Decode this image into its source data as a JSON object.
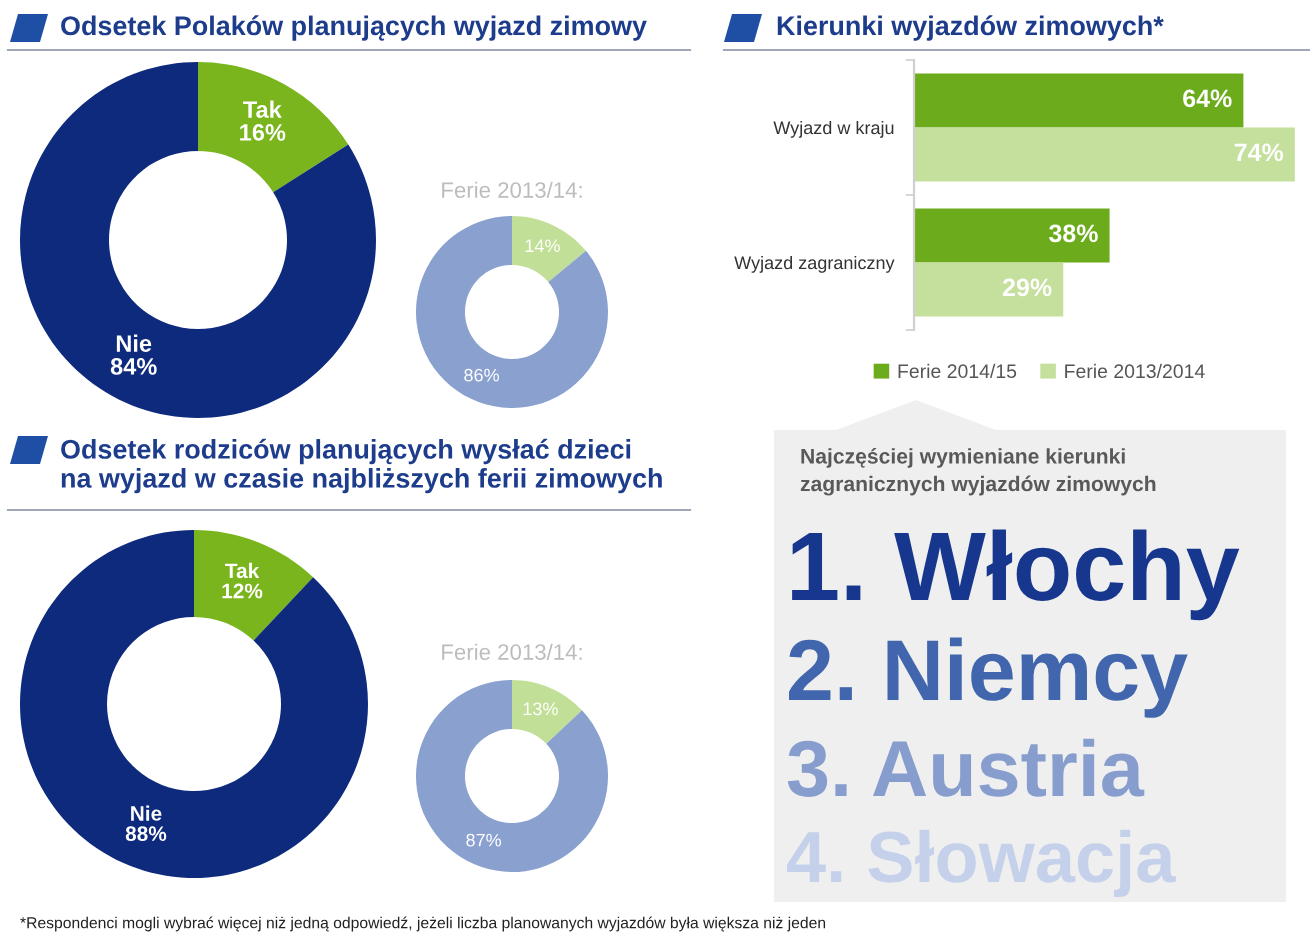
{
  "chart_data": [
    {
      "type": "donut",
      "title": "Odsetek Polaków planujących wyjazd zimowy",
      "categories": [
        "Tak",
        "Nie"
      ],
      "values": [
        16,
        84
      ],
      "value_labels": [
        "16%",
        "84%"
      ],
      "colors": [
        "#7ab51d",
        "#0d2a7c"
      ]
    },
    {
      "type": "donut",
      "title": "Ferie 2013/14:",
      "categories": [
        null,
        null
      ],
      "values": [
        14,
        86
      ],
      "value_labels": [
        "14%",
        "86%"
      ],
      "colors": [
        "#c2df98",
        "#8aa0cf"
      ]
    },
    {
      "type": "bar",
      "orientation": "horizontal",
      "title": "Kierunki wyjazdów zimowych*",
      "categories": [
        "Wyjazd w kraju",
        "Wyjazd zagraniczny"
      ],
      "series": [
        {
          "name": "Ferie 2014/15",
          "color": "#6cac1c",
          "values": [
            64,
            38
          ],
          "value_labels": [
            "64%",
            "38%"
          ]
        },
        {
          "name": "Ferie 2013/2014",
          "color": "#c4e09c",
          "values": [
            74,
            29
          ],
          "value_labels": [
            "74%",
            "29%"
          ]
        }
      ],
      "xlim": [
        0,
        75
      ],
      "tick_labels": "y",
      "legend": "bottom",
      "annotations": [
        "*Respondenci mogli wybrać więcej niż jedną odpowiedź, jeżeli liczba planowanych wyjazdów była większa niż jeden"
      ]
    },
    {
      "type": "donut",
      "title": "Odsetek rodziców planujących wysłać dzieci\nna wyjazd w czasie najbliższych ferii zimowych",
      "categories": [
        "Tak",
        "Nie"
      ],
      "values": [
        12,
        88
      ],
      "value_labels": [
        "12%",
        "88%"
      ],
      "colors": [
        "#7ab51d",
        "#0d2a7c"
      ]
    },
    {
      "type": "donut",
      "title": "Ferie 2013/14:",
      "categories": [
        null,
        null
      ],
      "values": [
        13,
        87
      ],
      "value_labels": [
        "13%",
        "87%"
      ],
      "colors": [
        "#c2df98",
        "#8aa0cf"
      ]
    },
    {
      "type": "other",
      "title": "Najczęściej wymieniane kierunki\nzagranicznych wyjazdów zimowych",
      "categories": [
        "1. Włochy",
        "2. Niemcy",
        "3. Austria",
        "4. Słowacja"
      ]
    }
  ]
}
